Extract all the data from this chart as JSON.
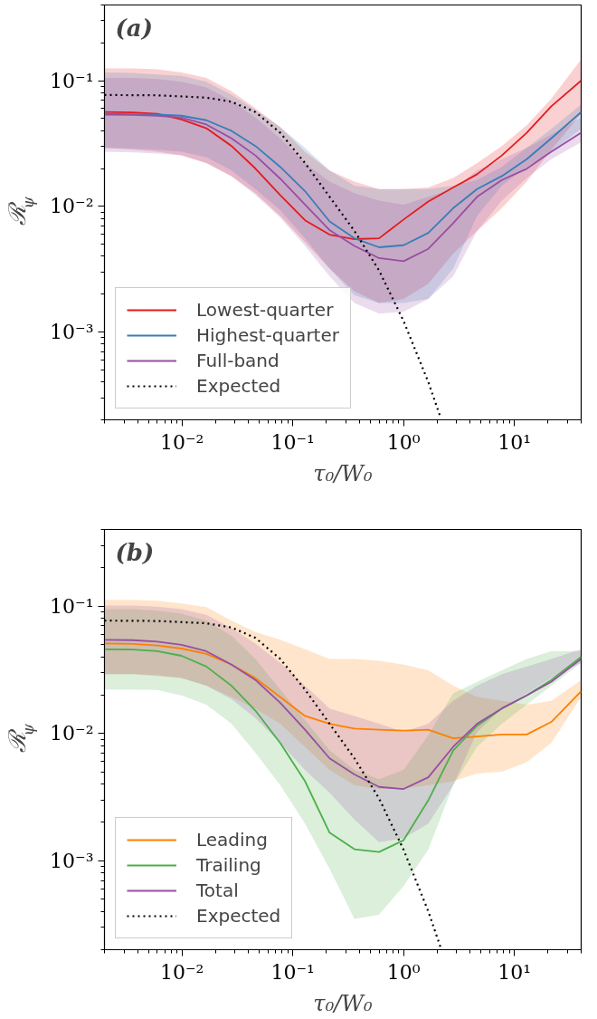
{
  "chart_data": [
    {
      "type": "line",
      "annotations": [
        "(a)"
      ],
      "xlabel": "τ₀/W₀",
      "ylabel": "ℛ$_{ψ}$",
      "log": "xy",
      "xlim": [
        0.002,
        40
      ],
      "ylim": [
        0.0002,
        0.4
      ],
      "xticks": [
        {
          "value": 0.01,
          "label": "10⁻²"
        },
        {
          "value": 0.1,
          "label": "10⁻¹"
        },
        {
          "value": 1,
          "label": "10⁰"
        },
        {
          "value": 10,
          "label": "10¹"
        }
      ],
      "yticks": [
        {
          "value": 0.001,
          "label": "10⁻³"
        },
        {
          "value": 0.01,
          "label": "10⁻²"
        },
        {
          "value": 0.1,
          "label": "10⁻¹"
        }
      ],
      "grid": false,
      "legend": "bottom left",
      "line_style": "solid",
      "marker": "none",
      "x": [
        0.002,
        0.0036,
        0.006,
        0.0099,
        0.0166,
        0.028,
        0.046,
        0.077,
        0.129,
        0.215,
        0.36,
        0.6,
        1.0,
        1.67,
        2.8,
        4.6,
        7.7,
        12.9,
        21.5,
        40
      ],
      "series": [
        {
          "name": "Lowest-quarter",
          "color": "#e41a1c",
          "values": [
            0.0564,
            0.0559,
            0.0545,
            0.0491,
            0.0418,
            0.0302,
            0.02,
            0.0123,
            0.00774,
            0.00595,
            0.00548,
            0.00556,
            0.00785,
            0.0109,
            0.0141,
            0.018,
            0.0254,
            0.0385,
            0.0625,
            0.1
          ],
          "upper": [
            0.125,
            0.125,
            0.123,
            0.116,
            0.105,
            0.0824,
            0.0604,
            0.0427,
            0.0272,
            0.0193,
            0.0157,
            0.0137,
            0.0137,
            0.0141,
            0.0168,
            0.0221,
            0.0302,
            0.0442,
            0.0718,
            0.148
          ],
          "lower": [
            0.0292,
            0.0282,
            0.0272,
            0.0254,
            0.0221,
            0.0174,
            0.0127,
            0.00841,
            0.00517,
            0.0032,
            0.00211,
            0.0017,
            0.00183,
            0.00242,
            0.00421,
            0.00637,
            0.00967,
            0.0157,
            0.0282,
            0.0544
          ]
        },
        {
          "name": "Highest-quarter",
          "color": "#377eb8",
          "values": [
            0.0544,
            0.0541,
            0.0537,
            0.0526,
            0.0484,
            0.0399,
            0.0302,
            0.0206,
            0.0132,
            0.00757,
            0.00557,
            0.00472,
            0.0049,
            0.00614,
            0.00967,
            0.0137,
            0.0174,
            0.0237,
            0.0347,
            0.0563
          ],
          "upper": [
            0.116,
            0.115,
            0.112,
            0.109,
            0.098,
            0.0769,
            0.0583,
            0.0427,
            0.0292,
            0.0193,
            0.0146,
            0.0137,
            0.0137,
            0.0137,
            0.0146,
            0.0162,
            0.0206,
            0.0292,
            0.0413,
            0.0647
          ],
          "lower": [
            0.0292,
            0.0288,
            0.0282,
            0.0272,
            0.0246,
            0.0193,
            0.0137,
            0.00934,
            0.00557,
            0.0032,
            0.00196,
            0.0017,
            0.0017,
            0.00183,
            0.0032,
            0.00841,
            0.0146,
            0.0206,
            0.0272,
            0.0413
          ]
        },
        {
          "name": "Full-band",
          "color": "#984ea3",
          "values": [
            0.0537,
            0.0533,
            0.0526,
            0.0508,
            0.0448,
            0.0347,
            0.0254,
            0.0166,
            0.0103,
            0.00646,
            0.00484,
            0.00387,
            0.00366,
            0.00459,
            0.00734,
            0.0119,
            0.0162,
            0.0199,
            0.0272,
            0.0385
          ],
          "upper": [
            0.105,
            0.105,
            0.103,
            0.098,
            0.0883,
            0.0693,
            0.0508,
            0.0347,
            0.0221,
            0.0157,
            0.0127,
            0.0111,
            0.0103,
            0.0119,
            0.0137,
            0.0193,
            0.0237,
            0.0292,
            0.0372,
            0.0508
          ],
          "lower": [
            0.0272,
            0.0269,
            0.0263,
            0.0254,
            0.0221,
            0.0174,
            0.0123,
            0.00812,
            0.00484,
            0.00278,
            0.0017,
            0.0014,
            0.00145,
            0.00183,
            0.00278,
            0.00637,
            0.0111,
            0.0168,
            0.0237,
            0.0324
          ]
        },
        {
          "name": "Expected",
          "color": "#000000",
          "line_style": "dotted",
          "x": [
            0.002,
            0.006,
            0.0166,
            0.028,
            0.046,
            0.077,
            0.129,
            0.215,
            0.36,
            0.6,
            1.0,
            1.67,
            2.15
          ],
          "values": [
            0.0769,
            0.0764,
            0.0733,
            0.0679,
            0.0563,
            0.0385,
            0.0221,
            0.0119,
            0.00637,
            0.00309,
            0.00122,
            0.0004,
            0.00021
          ]
        }
      ]
    },
    {
      "type": "line",
      "annotations": [
        "(b)"
      ],
      "xlabel": "τ₀/W₀",
      "ylabel": "ℛ$_{ψ}$",
      "log": "xy",
      "xlim": [
        0.002,
        40
      ],
      "ylim": [
        0.0002,
        0.4
      ],
      "xticks": [
        {
          "value": 0.01,
          "label": "10⁻²"
        },
        {
          "value": 0.1,
          "label": "10⁻¹"
        },
        {
          "value": 1,
          "label": "10⁰"
        },
        {
          "value": 10,
          "label": "10¹"
        }
      ],
      "yticks": [
        {
          "value": 0.001,
          "label": "10⁻³"
        },
        {
          "value": 0.01,
          "label": "10⁻²"
        },
        {
          "value": 0.1,
          "label": "10⁻¹"
        }
      ],
      "grid": false,
      "legend": "bottom left",
      "line_style": "solid",
      "marker": "none",
      "x": [
        0.002,
        0.0036,
        0.006,
        0.0099,
        0.0166,
        0.028,
        0.046,
        0.077,
        0.129,
        0.215,
        0.36,
        0.6,
        1.0,
        1.67,
        2.8,
        4.6,
        7.7,
        12.9,
        21.5,
        40
      ],
      "series": [
        {
          "name": "Leading",
          "color": "#ff7f00",
          "values": [
            0.0508,
            0.0504,
            0.049,
            0.0464,
            0.0421,
            0.0347,
            0.0272,
            0.0193,
            0.0137,
            0.0119,
            0.0109,
            0.0107,
            0.0105,
            0.0107,
            0.00915,
            0.00945,
            0.0098,
            0.0098,
            0.0123,
            0.0214
          ],
          "upper": [
            0.112,
            0.112,
            0.11,
            0.105,
            0.098,
            0.0769,
            0.0625,
            0.0544,
            0.0458,
            0.0385,
            0.0385,
            0.0372,
            0.0347,
            0.0313,
            0.0237,
            0.0193,
            0.018,
            0.0168,
            0.018,
            0.0263
          ],
          "lower": [
            0.0292,
            0.0292,
            0.0282,
            0.0272,
            0.0237,
            0.0193,
            0.0157,
            0.0119,
            0.00785,
            0.00517,
            0.00392,
            0.00366,
            0.00366,
            0.00392,
            0.00421,
            0.00484,
            0.005,
            0.00594,
            0.00841,
            0.0193
          ]
        },
        {
          "name": "Trailing",
          "color": "#4daf4a",
          "values": [
            0.0458,
            0.0455,
            0.0442,
            0.0407,
            0.0335,
            0.0237,
            0.0151,
            0.00841,
            0.00421,
            0.00166,
            0.00123,
            0.00117,
            0.00145,
            0.00298,
            0.00734,
            0.0115,
            0.0157,
            0.0199,
            0.0263,
            0.0399
          ],
          "upper": [
            0.0946,
            0.0946,
            0.092,
            0.0871,
            0.0769,
            0.0583,
            0.0385,
            0.0221,
            0.0127,
            0.00734,
            0.00517,
            0.00436,
            0.00517,
            0.00967,
            0.0206,
            0.0254,
            0.0313,
            0.0385,
            0.0442,
            0.0442
          ],
          "lower": [
            0.0221,
            0.0221,
            0.0219,
            0.0199,
            0.0168,
            0.0119,
            0.00706,
            0.00392,
            0.00196,
            0.000862,
            0.000349,
            0.000377,
            0.000633,
            0.00122,
            0.00392,
            0.00785,
            0.0119,
            0.0168,
            0.0237,
            0.0359
          ]
        },
        {
          "name": "Total",
          "color": "#984ea3",
          "values": [
            0.0544,
            0.054,
            0.0526,
            0.0497,
            0.0442,
            0.0347,
            0.0263,
            0.0174,
            0.0107,
            0.00637,
            0.00476,
            0.0038,
            0.00366,
            0.00452,
            0.00785,
            0.0119,
            0.0157,
            0.0199,
            0.0254,
            0.0385
          ],
          "upper": [
            0.101,
            0.101,
            0.099,
            0.0946,
            0.0853,
            0.067,
            0.0508,
            0.0359,
            0.0237,
            0.0157,
            0.0137,
            0.0119,
            0.0103,
            0.0119,
            0.018,
            0.0237,
            0.0292,
            0.0335,
            0.0385,
            0.0458
          ],
          "lower": [
            0.0292,
            0.0292,
            0.0286,
            0.0272,
            0.0237,
            0.0186,
            0.0132,
            0.00841,
            0.00517,
            0.00341,
            0.00211,
            0.0014,
            0.0015,
            0.00196,
            0.00392,
            0.0103,
            0.0157,
            0.0206,
            0.0272,
            0.0359
          ]
        },
        {
          "name": "Expected",
          "color": "#000000",
          "line_style": "dotted",
          "x": [
            0.002,
            0.006,
            0.0166,
            0.028,
            0.046,
            0.077,
            0.129,
            0.215,
            0.36,
            0.6,
            1.0,
            1.67,
            2.15
          ],
          "values": [
            0.0769,
            0.0764,
            0.0733,
            0.0679,
            0.0563,
            0.0385,
            0.0221,
            0.0119,
            0.00637,
            0.00309,
            0.00122,
            0.0004,
            0.00021
          ]
        }
      ]
    }
  ]
}
